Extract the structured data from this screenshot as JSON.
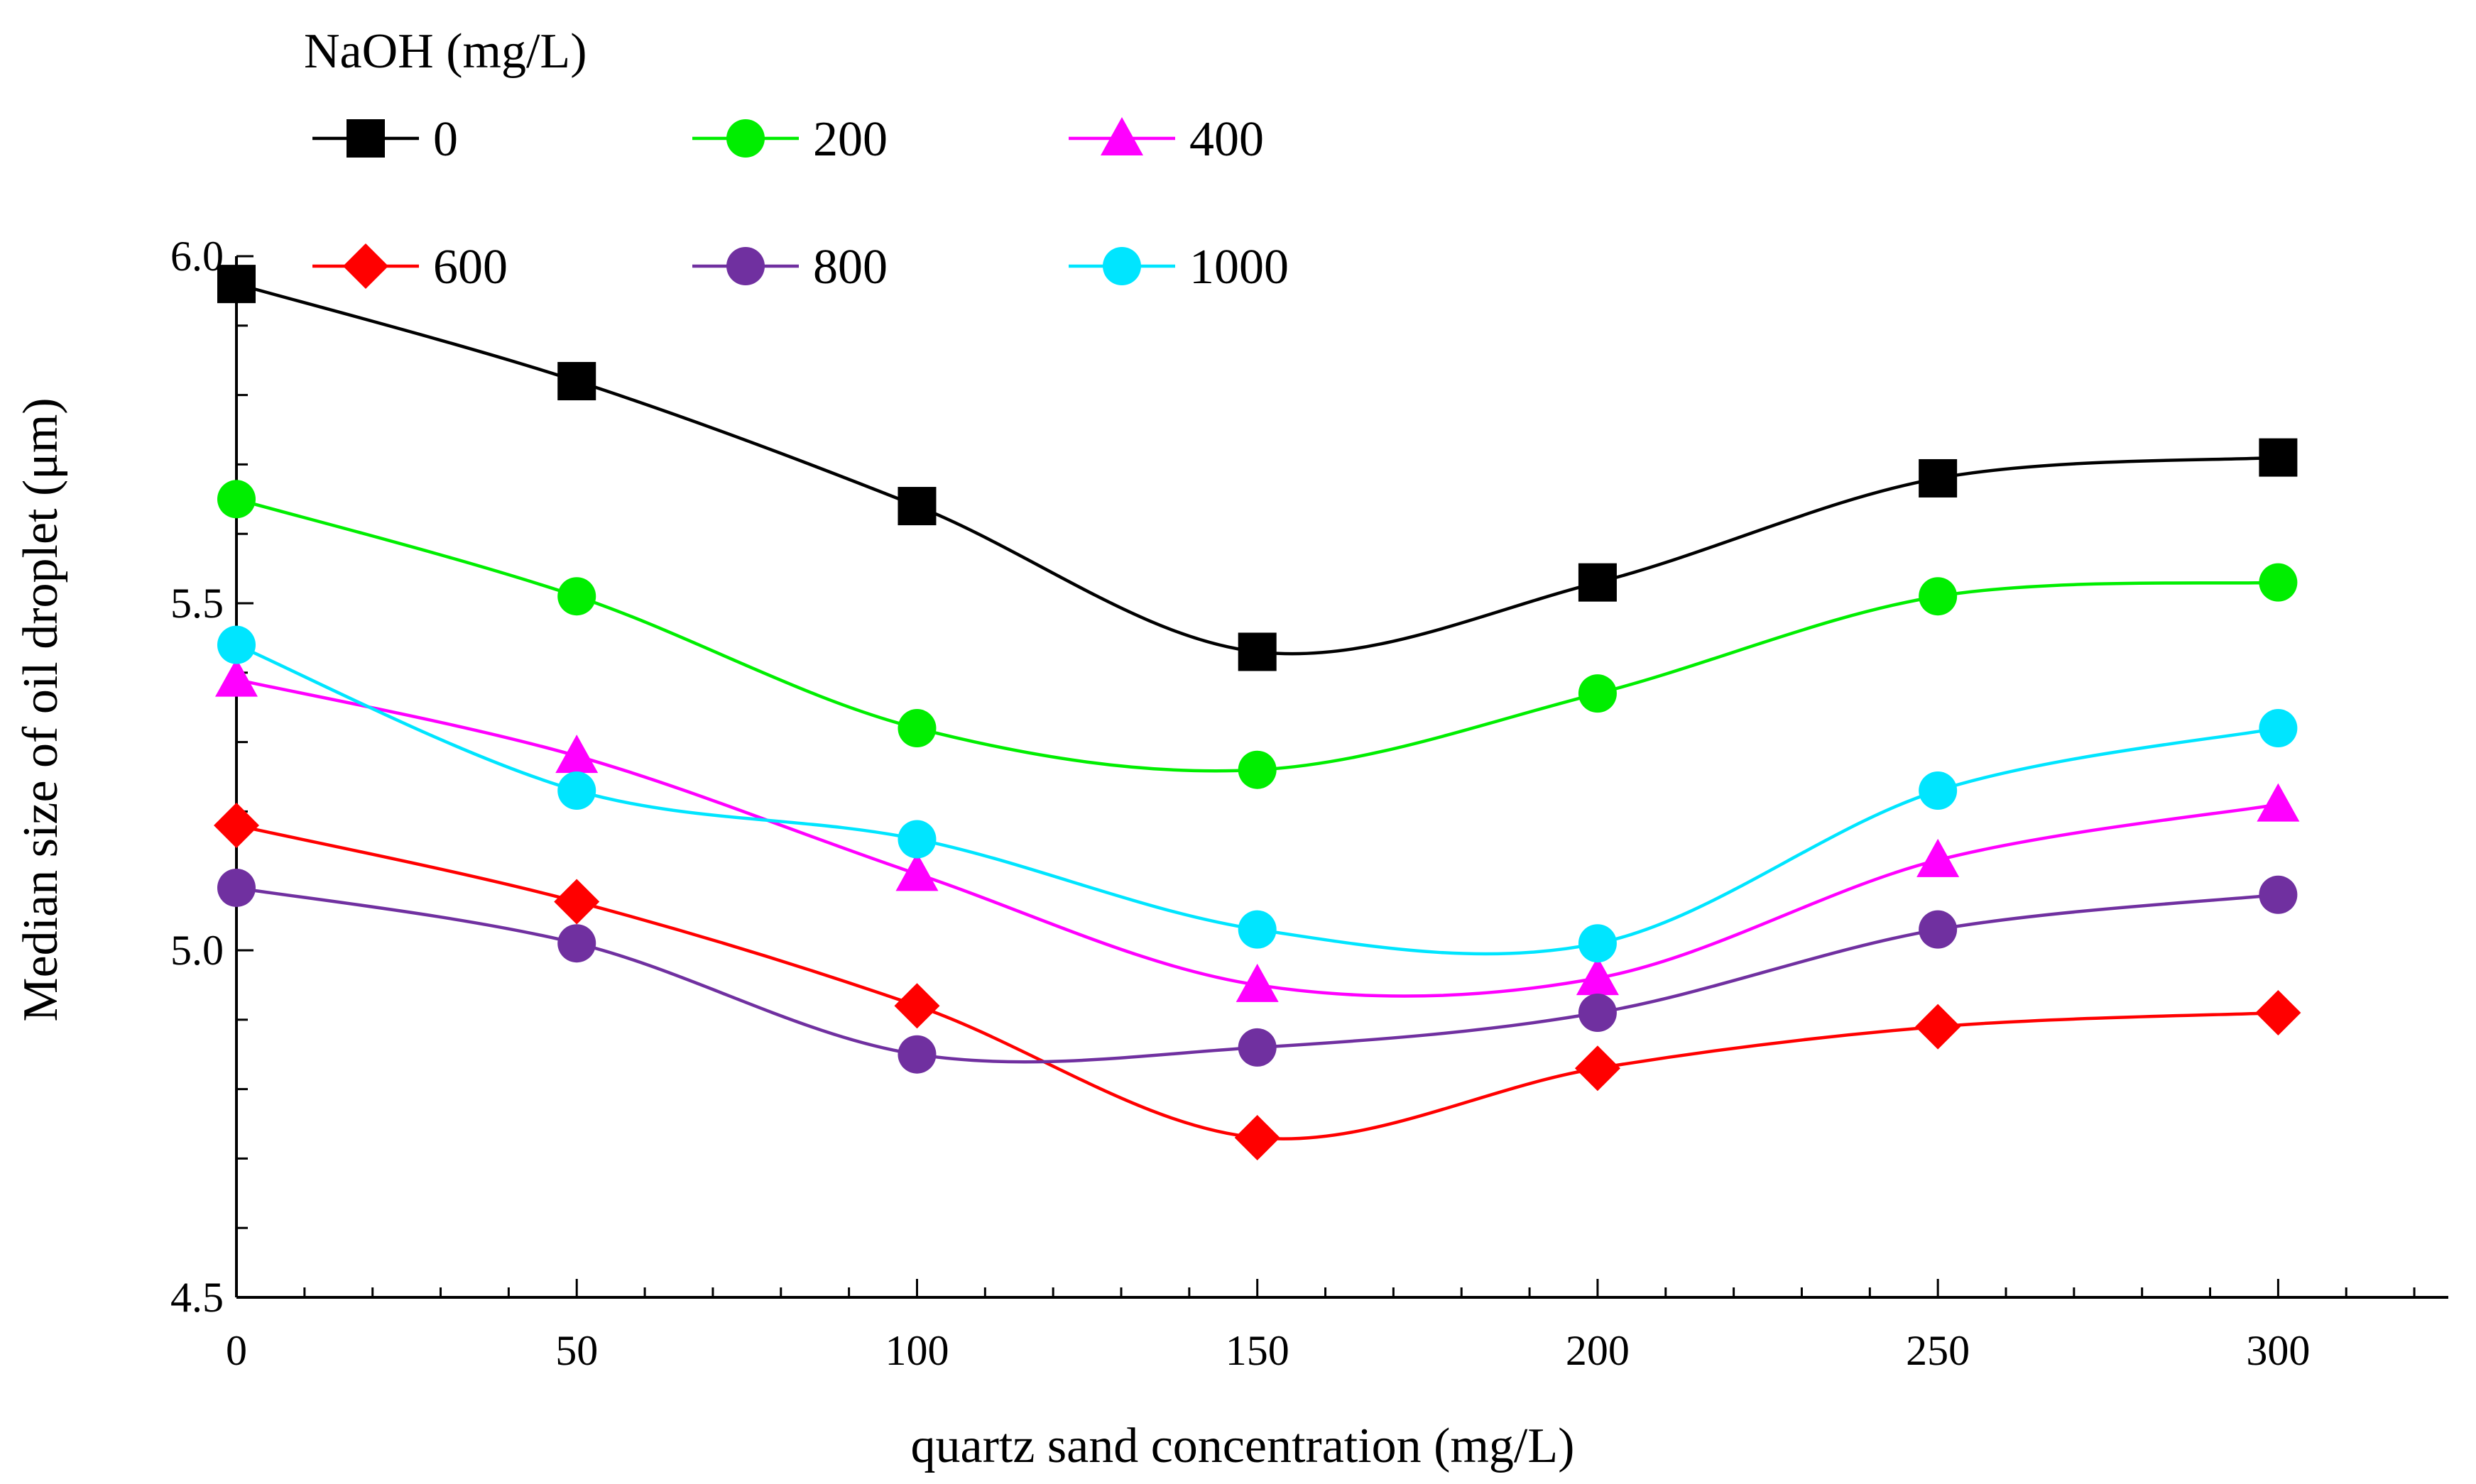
{
  "chart_data": {
    "type": "line",
    "title": "",
    "xlabel": "quartz sand concentration (mg/L)",
    "ylabel": "Median size of oil droplet  (μm)",
    "xlim": [
      0,
      325
    ],
    "ylim": [
      4.5,
      6.0
    ],
    "x": [
      0,
      50,
      100,
      150,
      200,
      250,
      300
    ],
    "x_ticks": [
      "0",
      "50",
      "100",
      "150",
      "200",
      "250",
      "300"
    ],
    "y_ticks": [
      "4.5",
      "5.0",
      "5.5",
      "6.0"
    ],
    "grid": false,
    "legend": {
      "title": "NaOH (mg/L)",
      "placement": "top-left"
    },
    "series": [
      {
        "name": "0",
        "color": "#000000",
        "marker": "square",
        "values": [
          5.96,
          5.82,
          5.64,
          5.43,
          5.53,
          5.68,
          5.71
        ]
      },
      {
        "name": "200",
        "color": "#00ee00",
        "marker": "circle",
        "values": [
          5.65,
          5.51,
          5.32,
          5.26,
          5.37,
          5.51,
          5.53
        ]
      },
      {
        "name": "400",
        "color": "#ff00ff",
        "marker": "triangle",
        "values": [
          5.39,
          5.28,
          5.11,
          4.95,
          4.96,
          5.13,
          5.21
        ]
      },
      {
        "name": "600",
        "color": "#ff0000",
        "marker": "diamond",
        "values": [
          5.18,
          5.07,
          4.92,
          4.73,
          4.83,
          4.89,
          4.91
        ]
      },
      {
        "name": "800",
        "color": "#7030a0",
        "marker": "circle",
        "values": [
          5.09,
          5.01,
          4.85,
          4.86,
          4.91,
          5.03,
          5.08
        ]
      },
      {
        "name": "1000",
        "color": "#00e5ff",
        "marker": "circle",
        "values": [
          5.44,
          5.23,
          5.16,
          5.03,
          5.01,
          5.23,
          5.32
        ]
      }
    ]
  }
}
